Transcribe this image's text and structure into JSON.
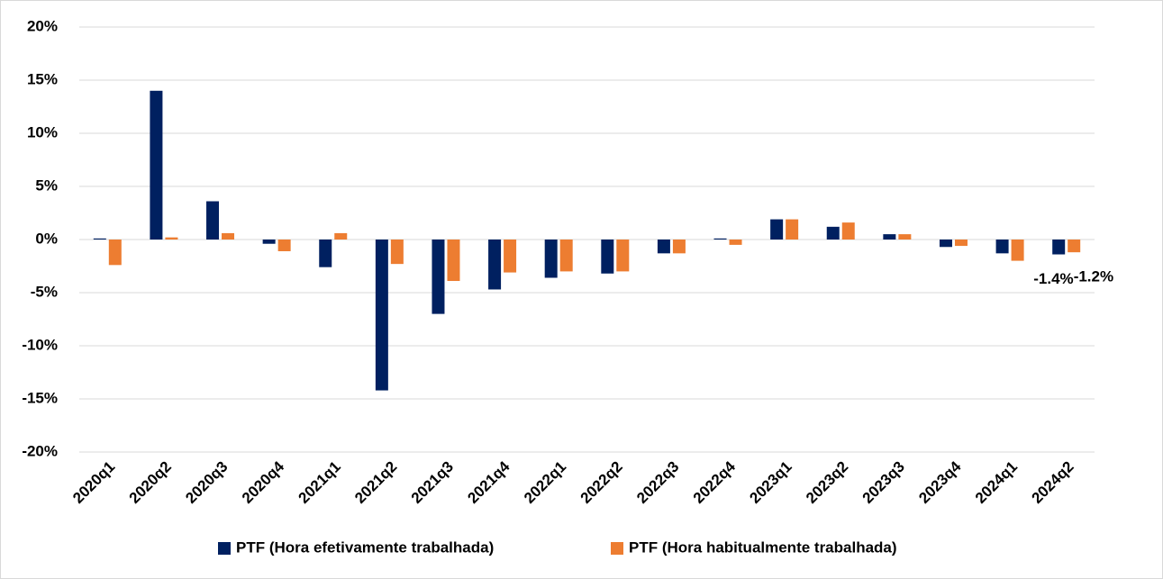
{
  "chart_data": {
    "type": "bar",
    "categories": [
      "2020q1",
      "2020q2",
      "2020q3",
      "2020q4",
      "2021q1",
      "2021q2",
      "2021q3",
      "2021q4",
      "2022q1",
      "2022q2",
      "2022q3",
      "2022q4",
      "2023q1",
      "2023q2",
      "2023q3",
      "2023q4",
      "2024q1",
      "2024q2"
    ],
    "series": [
      {
        "name": "PTF (Hora efetivamente trabalhada)",
        "color": "#002060",
        "values": [
          0.1,
          14.0,
          3.6,
          -0.4,
          -2.6,
          -14.2,
          -7.0,
          -4.7,
          -3.6,
          -3.2,
          -1.3,
          0.1,
          1.9,
          1.2,
          0.5,
          -0.7,
          -1.3,
          -1.4
        ],
        "value_labels": [
          null,
          null,
          null,
          null,
          null,
          null,
          null,
          null,
          null,
          null,
          null,
          null,
          null,
          null,
          null,
          null,
          null,
          "-1.4%"
        ]
      },
      {
        "name": "PTF (Hora habitualmente trabalhada)",
        "color": "#ed7d31",
        "values": [
          -2.4,
          0.2,
          0.6,
          -1.1,
          0.6,
          -2.3,
          -3.9,
          -3.1,
          -3.0,
          -3.0,
          -1.3,
          -0.5,
          1.9,
          1.6,
          0.5,
          -0.6,
          -2.0,
          -1.2
        ],
        "value_labels": [
          null,
          null,
          null,
          null,
          null,
          null,
          null,
          null,
          null,
          null,
          null,
          null,
          null,
          null,
          null,
          null,
          null,
          "-1.2%"
        ]
      }
    ],
    "ylim": [
      -20,
      20
    ],
    "yticks": [
      {
        "value": -20,
        "label": "-20%"
      },
      {
        "value": -15,
        "label": "-15%"
      },
      {
        "value": -10,
        "label": "-10%"
      },
      {
        "value": -5,
        "label": "-5%"
      },
      {
        "value": 0,
        "label": "0%"
      },
      {
        "value": 5,
        "label": "5%"
      },
      {
        "value": 10,
        "label": "10%"
      },
      {
        "value": 15,
        "label": "15%"
      },
      {
        "value": 20,
        "label": "20%"
      }
    ],
    "grid": true,
    "legend": "bottom"
  }
}
